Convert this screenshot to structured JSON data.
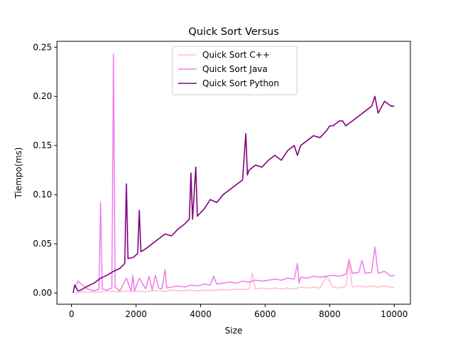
{
  "chart_data": {
    "type": "line",
    "title": "Quick Sort Versus",
    "xlabel": "Size",
    "ylabel": "Tiempo(ms)",
    "xlim": [
      -450,
      10500
    ],
    "ylim": [
      -0.0115,
      0.256
    ],
    "xticks": [
      0,
      2000,
      4000,
      6000,
      8000,
      10000
    ],
    "xtick_labels": [
      "0",
      "2000",
      "4000",
      "6000",
      "8000",
      "10000"
    ],
    "yticks": [
      0.0,
      0.05,
      0.1,
      0.15,
      0.2,
      0.25
    ],
    "ytick_labels": [
      "0.00",
      "0.05",
      "0.10",
      "0.15",
      "0.20",
      "0.25"
    ],
    "grid": false,
    "legend_position": "top-center",
    "series": [
      {
        "name": "Quick Sort C++",
        "color": "#ffc0cb",
        "x": [
          100,
          300,
          500,
          700,
          900,
          1100,
          1300,
          1500,
          1700,
          1900,
          2100,
          2300,
          2500,
          2700,
          2900,
          3100,
          3300,
          3500,
          3700,
          3900,
          4100,
          4300,
          4500,
          4700,
          4900,
          5100,
          5300,
          5500,
          5600,
          5700,
          5900,
          6100,
          6300,
          6500,
          6700,
          6900,
          7100,
          7300,
          7500,
          7700,
          7900,
          8100,
          8300,
          8500,
          8600,
          8700,
          8900,
          9100,
          9300,
          9500,
          9700,
          9900,
          10000
        ],
        "y": [
          0.0,
          0.001,
          0.0005,
          0.001,
          0.001,
          0.002,
          0.0015,
          0.001,
          0.002,
          0.0015,
          0.002,
          0.001,
          0.0025,
          0.002,
          0.0015,
          0.003,
          0.002,
          0.0025,
          0.003,
          0.002,
          0.003,
          0.0025,
          0.003,
          0.0035,
          0.003,
          0.004,
          0.0035,
          0.004,
          0.02,
          0.004,
          0.005,
          0.004,
          0.005,
          0.004,
          0.005,
          0.004,
          0.006,
          0.005,
          0.006,
          0.005,
          0.017,
          0.006,
          0.005,
          0.007,
          0.03,
          0.006,
          0.007,
          0.006,
          0.007,
          0.006,
          0.007,
          0.006,
          0.005
        ]
      },
      {
        "name": "Quick Sort Java",
        "color": "#ee82ee",
        "x": [
          100,
          200,
          300,
          500,
          700,
          850,
          900,
          950,
          1100,
          1250,
          1300,
          1350,
          1500,
          1700,
          1850,
          1900,
          1950,
          2100,
          2300,
          2400,
          2500,
          2600,
          2700,
          2800,
          2900,
          2950,
          3100,
          3300,
          3500,
          3700,
          3900,
          4100,
          4300,
          4400,
          4500,
          4700,
          4900,
          5100,
          5300,
          5500,
          5700,
          5900,
          6100,
          6300,
          6500,
          6700,
          6900,
          7000,
          7050,
          7100,
          7300,
          7500,
          7700,
          7900,
          8100,
          8300,
          8500,
          8600,
          8700,
          8900,
          9000,
          9100,
          9300,
          9400,
          9500,
          9700,
          9900,
          10000
        ],
        "y": [
          0.005,
          0.012,
          0.009,
          0.004,
          0.002,
          0.004,
          0.092,
          0.004,
          0.003,
          0.005,
          0.243,
          0.006,
          0.002,
          0.015,
          0.002,
          0.018,
          0.002,
          0.015,
          0.004,
          0.017,
          0.003,
          0.018,
          0.005,
          0.004,
          0.024,
          0.005,
          0.006,
          0.007,
          0.006,
          0.008,
          0.007,
          0.009,
          0.008,
          0.017,
          0.009,
          0.01,
          0.011,
          0.01,
          0.012,
          0.011,
          0.013,
          0.012,
          0.013,
          0.014,
          0.013,
          0.015,
          0.014,
          0.03,
          0.01,
          0.016,
          0.015,
          0.017,
          0.016,
          0.017,
          0.018,
          0.017,
          0.019,
          0.034,
          0.02,
          0.021,
          0.033,
          0.02,
          0.021,
          0.047,
          0.02,
          0.022,
          0.017,
          0.018
        ]
      },
      {
        "name": "Quick Sort Python",
        "color": "#800080",
        "x": [
          50,
          100,
          200,
          300,
          500,
          700,
          900,
          1100,
          1300,
          1500,
          1650,
          1700,
          1750,
          1900,
          2050,
          2100,
          2150,
          2300,
          2500,
          2700,
          2900,
          3100,
          3300,
          3500,
          3650,
          3700,
          3750,
          3850,
          3900,
          3950,
          4100,
          4300,
          4500,
          4700,
          4900,
          5100,
          5300,
          5400,
          5450,
          5500,
          5700,
          5900,
          6100,
          6300,
          6500,
          6700,
          6900,
          7000,
          7100,
          7300,
          7500,
          7700,
          7900,
          8000,
          8100,
          8300,
          8400,
          8500,
          8700,
          8900,
          9100,
          9300,
          9400,
          9500,
          9700,
          9900,
          10000
        ],
        "y": [
          0.0,
          0.008,
          0.002,
          0.003,
          0.007,
          0.01,
          0.015,
          0.018,
          0.022,
          0.025,
          0.03,
          0.111,
          0.035,
          0.036,
          0.04,
          0.084,
          0.042,
          0.045,
          0.05,
          0.055,
          0.06,
          0.058,
          0.065,
          0.07,
          0.075,
          0.122,
          0.075,
          0.128,
          0.078,
          0.08,
          0.085,
          0.095,
          0.092,
          0.1,
          0.105,
          0.11,
          0.115,
          0.162,
          0.12,
          0.125,
          0.13,
          0.128,
          0.135,
          0.14,
          0.135,
          0.145,
          0.15,
          0.14,
          0.15,
          0.155,
          0.16,
          0.158,
          0.165,
          0.17,
          0.17,
          0.175,
          0.175,
          0.17,
          0.175,
          0.18,
          0.185,
          0.19,
          0.2,
          0.183,
          0.195,
          0.19,
          0.19
        ]
      }
    ]
  }
}
